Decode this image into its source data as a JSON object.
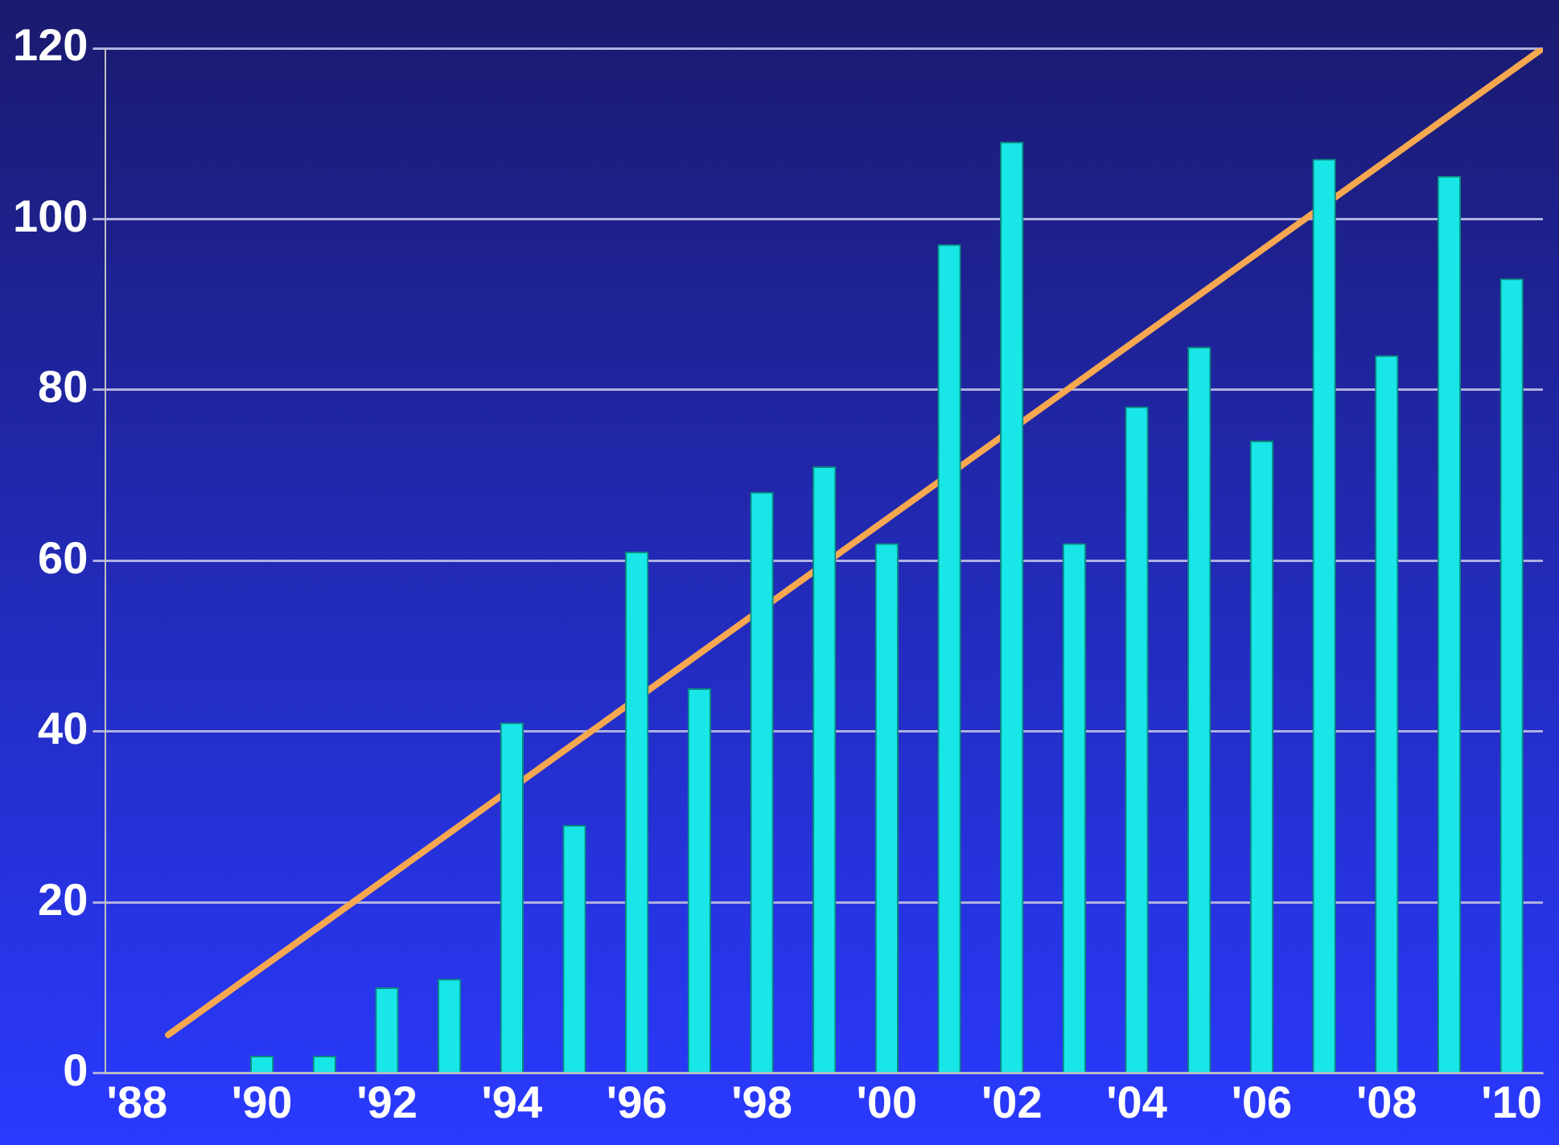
{
  "chart_data": {
    "type": "bar",
    "x": [
      1988,
      1989,
      1990,
      1991,
      1992,
      1993,
      1994,
      1995,
      1996,
      1997,
      1998,
      1999,
      2000,
      2001,
      2002,
      2003,
      2004,
      2005,
      2006,
      2007,
      2008,
      2009,
      2010
    ],
    "series": [
      {
        "color": "#19e6e6",
        "values": [
          0,
          0,
          2,
          2,
          10,
          11,
          41,
          29,
          61,
          45,
          68,
          71,
          62,
          97,
          109,
          62,
          78,
          85,
          74,
          107,
          84,
          105,
          93
        ]
      },
      {
        "type": "line",
        "color": "#f5a850",
        "x": [
          1988.5,
          2010.5
        ],
        "values": [
          4.5,
          120
        ]
      }
    ],
    "xlim": [
      1987.5,
      2010.5
    ],
    "xticks": [
      {
        "value": 1988,
        "label": "'88"
      },
      {
        "value": 1990,
        "label": "'90"
      },
      {
        "value": 1992,
        "label": "'92"
      },
      {
        "value": 1994,
        "label": "'94"
      },
      {
        "value": 1996,
        "label": "'96"
      },
      {
        "value": 1998,
        "label": "'98"
      },
      {
        "value": 2000,
        "label": "'00"
      },
      {
        "value": 2002,
        "label": "'02"
      },
      {
        "value": 2004,
        "label": "'04"
      },
      {
        "value": 2006,
        "label": "'06"
      },
      {
        "value": 2008,
        "label": "'08"
      },
      {
        "value": 2010,
        "label": "'10"
      }
    ],
    "ylim": [
      0,
      120
    ],
    "yticks": [
      0,
      20,
      40,
      60,
      80,
      100,
      120
    ],
    "grid": "y",
    "legend": false,
    "marker": "none",
    "line_style": "solid"
  }
}
